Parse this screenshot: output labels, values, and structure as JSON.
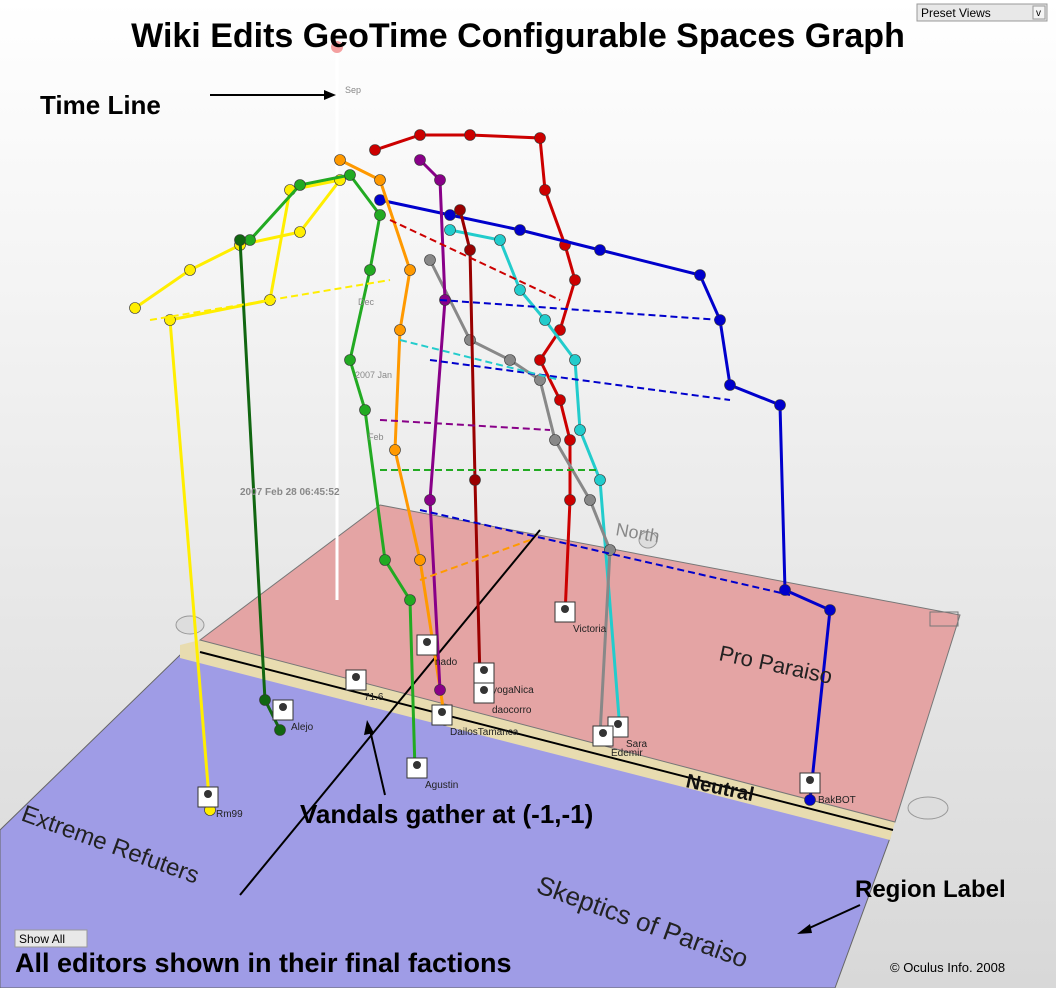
{
  "title": "Wiki Edits GeoTime Configurable Spaces Graph",
  "annotations": {
    "time_line": "Time Line",
    "vandals": "Vandals gather at (-1,-1)",
    "region_label": "Region Label",
    "footer": "All editors shown in their final factions",
    "copyright": "© Oculus Info. 2008"
  },
  "controls": {
    "preset_views": "Preset Views",
    "preset_arrow": "v",
    "show_all": "Show All"
  },
  "regions": {
    "pro": "Pro Paraiso",
    "neutral": "Neutral",
    "extreme": "Extreme Refuters",
    "skeptics": "Skeptics of Paraiso",
    "north": "North"
  },
  "time_labels": {
    "sep": "Sep",
    "dec": "Dec",
    "jan": "2007 Jan",
    "feb": "Feb",
    "cursor": "2007 Feb 28 06:45:52"
  },
  "editors": [
    "Victoria",
    "Sara",
    "Edemir",
    "BakBOT",
    "Agustin",
    "Alejo",
    "Rm99",
    "DailosTamanca",
    "yogaNica",
    "daocorro",
    "nado",
    "71.6"
  ]
}
